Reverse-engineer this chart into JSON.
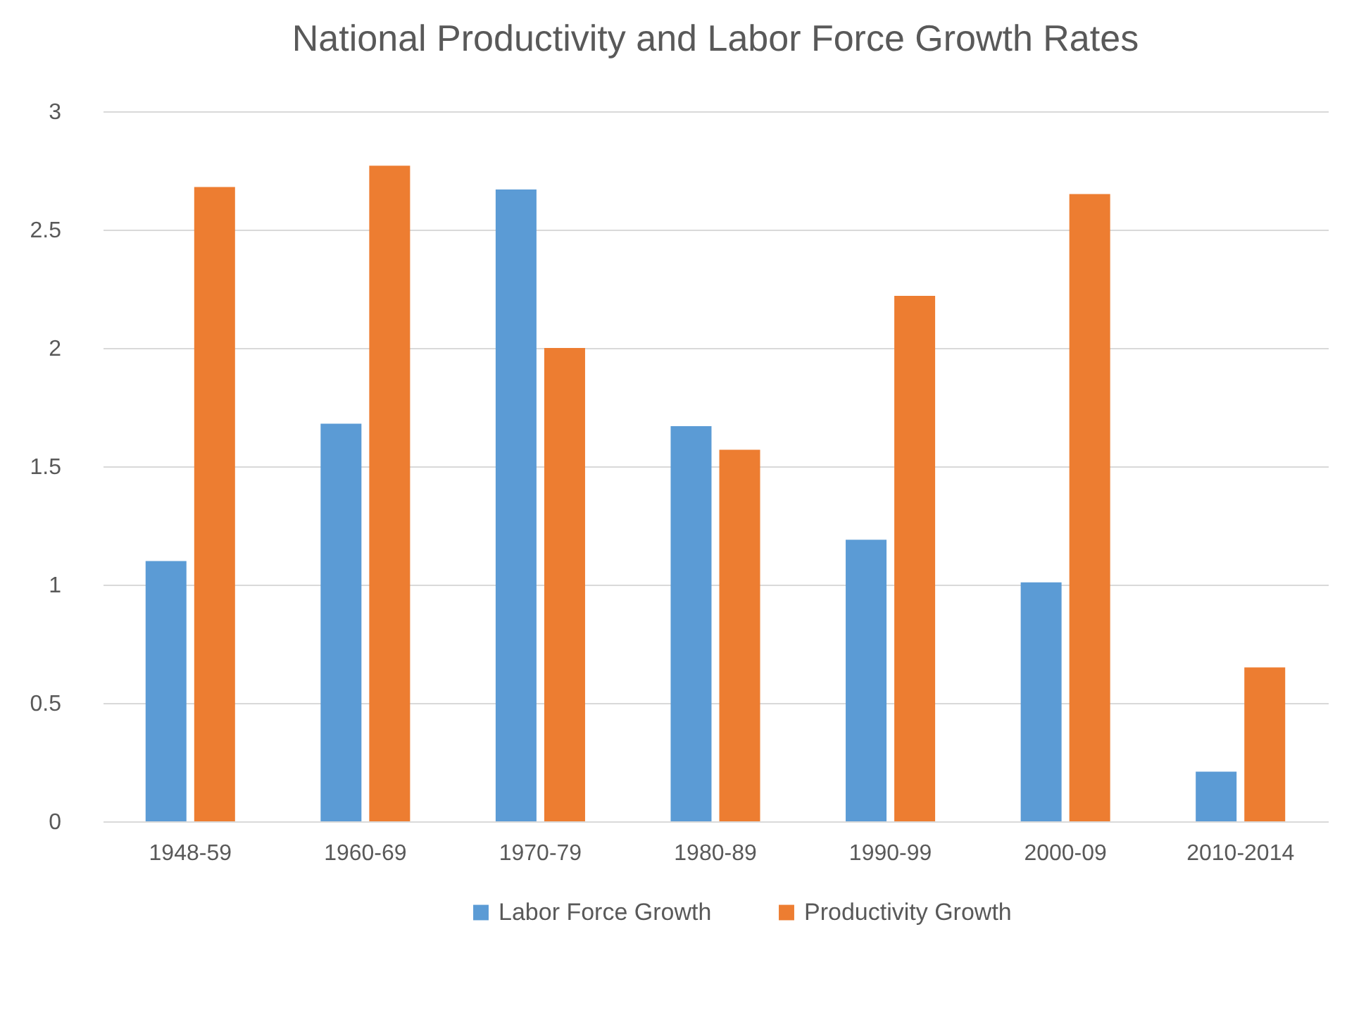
{
  "chart_data": {
    "type": "bar",
    "title": "National Productivity and Labor Force Growth Rates",
    "categories": [
      "1948-59",
      "1960-69",
      "1970-79",
      "1980-89",
      "1990-99",
      "2000-09",
      "2010-2014"
    ],
    "series": [
      {
        "name": "Labor Force  Growth",
        "color": "#5b9bd5",
        "values": [
          1.1,
          1.68,
          2.67,
          1.67,
          1.19,
          1.01,
          0.21
        ]
      },
      {
        "name": "Productivity Growth",
        "color": "#ed7d31",
        "values": [
          2.68,
          2.77,
          2.0,
          1.57,
          2.22,
          2.65,
          0.65
        ]
      }
    ],
    "ylim": [
      0,
      3
    ],
    "yticks": [
      0,
      0.5,
      1,
      1.5,
      2,
      2.5,
      3
    ],
    "grid": true,
    "legend": "bottom"
  }
}
